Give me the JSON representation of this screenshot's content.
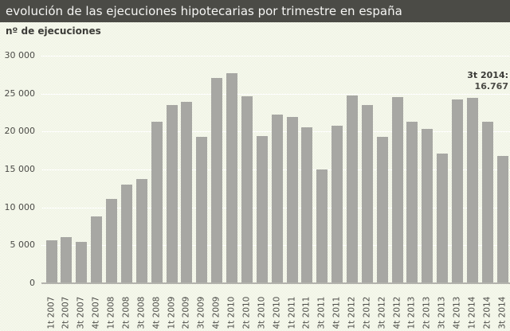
{
  "title_bar": {
    "title": "evolución de las ejecuciones hipotecarias por trimestre en españa"
  },
  "chart": {
    "axis_title": "nº de ejecuciones",
    "annotation_line1": "3t 2014:",
    "annotation_line2": "16.767"
  },
  "colors": {
    "title_bar_bg": "#4b4b46",
    "title_text": "#f5f5f3",
    "bar": "#a7a7a3",
    "background": "#f1f3e6",
    "gridline": "#ffffff",
    "axis_line": "#b3b3ad",
    "tick_text": "#4b4b47"
  },
  "chart_data": {
    "type": "bar",
    "title": "evolución de las ejecuciones hipotecarias por trimestre en españa",
    "xlabel": "",
    "ylabel": "nº de ejecuciones",
    "categories": [
      "1t 2007",
      "2t 2007",
      "3t 2007",
      "4t 2007",
      "1t 2008",
      "2t 2008",
      "3t 2008",
      "4t 2008",
      "1t 2009",
      "2t 2009",
      "3t 2009",
      "4t 2009",
      "1t 2010",
      "2t 2010",
      "3t 2010",
      "4t 2010",
      "1t 2011",
      "2t 2011",
      "3t 2011",
      "4t 2011",
      "1t 2012",
      "2t 2012",
      "3t 2012",
      "4t 2012",
      "1t 2013",
      "2t 2013",
      "3t 2013",
      "4t 2013",
      "1t 2014",
      "2t 2014",
      "3t 2014"
    ],
    "values": [
      5700,
      6100,
      5500,
      8800,
      11100,
      13000,
      13700,
      21300,
      23500,
      23900,
      19300,
      27100,
      27700,
      24700,
      19400,
      22200,
      21900,
      20600,
      15000,
      20800,
      24800,
      23500,
      19300,
      24500,
      21300,
      20400,
      17100,
      24200,
      24400,
      21300,
      16767
    ],
    "ylim": [
      0,
      30000
    ],
    "ytick_interval": 5000,
    "ytick_labels": [
      "30 000",
      "25 000",
      "20 000",
      "15 000",
      "10 000",
      "5 000",
      "0"
    ],
    "grid": true,
    "legend": false,
    "annotation": {
      "category": "3t 2014",
      "value": 16767,
      "text": "3t 2014: 16.767"
    }
  }
}
